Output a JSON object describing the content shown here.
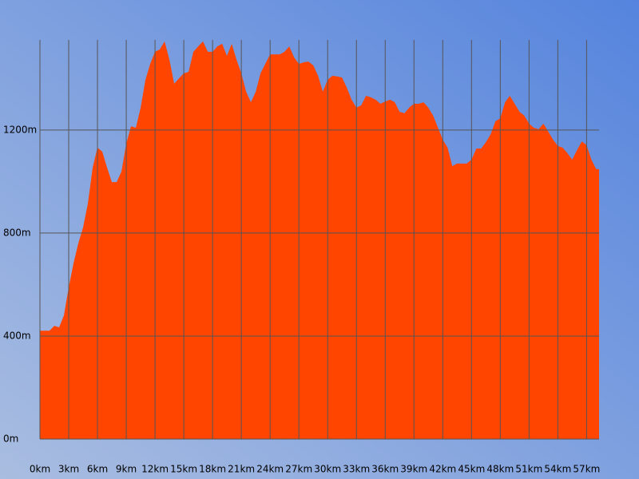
{
  "chart_data": {
    "type": "area",
    "x": [
      0,
      1,
      1.5,
      2,
      2.5,
      3,
      3.5,
      4,
      4.5,
      5,
      5.5,
      6,
      6.5,
      7,
      7.5,
      8,
      8.5,
      9,
      9.5,
      10,
      10.5,
      11,
      11.5,
      12,
      12.5,
      13,
      13.5,
      14,
      14.5,
      15,
      15.5,
      16,
      16.5,
      17,
      17.5,
      18,
      18.5,
      19,
      19.5,
      20,
      20.5,
      21,
      21.5,
      22,
      22.5,
      23,
      23.5,
      24,
      24.5,
      25,
      25.5,
      26,
      26.5,
      27,
      27.5,
      28,
      28.5,
      29,
      29.5,
      30,
      30.5,
      31,
      31.5,
      32,
      32.5,
      33,
      33.5,
      34,
      34.5,
      35,
      35.5,
      36,
      36.5,
      37,
      37.5,
      38,
      38.5,
      39,
      39.5,
      40,
      40.5,
      41,
      41.5,
      42,
      42.5,
      43,
      43.5,
      44,
      44.5,
      45,
      45.5,
      46,
      46.5,
      47,
      47.5,
      48,
      48.5,
      49,
      49.5,
      50,
      50.5,
      51,
      51.5,
      52,
      52.5,
      53,
      53.5,
      54,
      54.5,
      55,
      55.5,
      56,
      56.5,
      57,
      57.5,
      58,
      58.3
    ],
    "series": [
      {
        "color": "#ff4500",
        "values": [
          421,
          421,
          440,
          434,
          480,
          589,
          682,
          760,
          822,
          915,
          1054,
          1132,
          1116,
          1054,
          998,
          998,
          1039,
          1147,
          1215,
          1209,
          1287,
          1395,
          1457,
          1504,
          1513,
          1544,
          1473,
          1380,
          1401,
          1420,
          1426,
          1504,
          1525,
          1544,
          1504,
          1504,
          1525,
          1535,
          1488,
          1535,
          1473,
          1420,
          1349,
          1308,
          1349,
          1420,
          1457,
          1494,
          1494,
          1494,
          1504,
          1525,
          1482,
          1457,
          1463,
          1466,
          1451,
          1411,
          1349,
          1395,
          1411,
          1408,
          1404,
          1364,
          1318,
          1287,
          1296,
          1333,
          1327,
          1318,
          1302,
          1311,
          1318,
          1308,
          1271,
          1265,
          1287,
          1302,
          1302,
          1308,
          1287,
          1256,
          1209,
          1163,
          1132,
          1060,
          1070,
          1070,
          1070,
          1085,
          1128,
          1128,
          1153,
          1184,
          1234,
          1246,
          1308,
          1333,
          1302,
          1271,
          1256,
          1225,
          1209,
          1203,
          1225,
          1194,
          1163,
          1138,
          1132,
          1110,
          1085,
          1122,
          1156,
          1141,
          1085,
          1048,
          1048
        ]
      }
    ],
    "xlim": [
      0,
      58.3
    ],
    "ylim": [
      0,
      1550
    ],
    "xticks": [
      {
        "value": 0,
        "label": "0km"
      },
      {
        "value": 3,
        "label": "3km"
      },
      {
        "value": 6,
        "label": "6km"
      },
      {
        "value": 9,
        "label": "9km"
      },
      {
        "value": 12,
        "label": "12km"
      },
      {
        "value": 15,
        "label": "15km"
      },
      {
        "value": 18,
        "label": "18km"
      },
      {
        "value": 21,
        "label": "21km"
      },
      {
        "value": 24,
        "label": "24km"
      },
      {
        "value": 27,
        "label": "27km"
      },
      {
        "value": 30,
        "label": "30km"
      },
      {
        "value": 33,
        "label": "33km"
      },
      {
        "value": 36,
        "label": "36km"
      },
      {
        "value": 39,
        "label": "39km"
      },
      {
        "value": 42,
        "label": "42km"
      },
      {
        "value": 45,
        "label": "45km"
      },
      {
        "value": 48,
        "label": "48km"
      },
      {
        "value": 51,
        "label": "51km"
      },
      {
        "value": 54,
        "label": "54km"
      },
      {
        "value": 57,
        "label": "57km"
      }
    ],
    "yticks": [
      {
        "value": 0,
        "label": "0m"
      },
      {
        "value": 400,
        "label": "400m"
      },
      {
        "value": 800,
        "label": "800m"
      },
      {
        "value": 1200,
        "label": "1200m"
      }
    ],
    "grid": true
  }
}
